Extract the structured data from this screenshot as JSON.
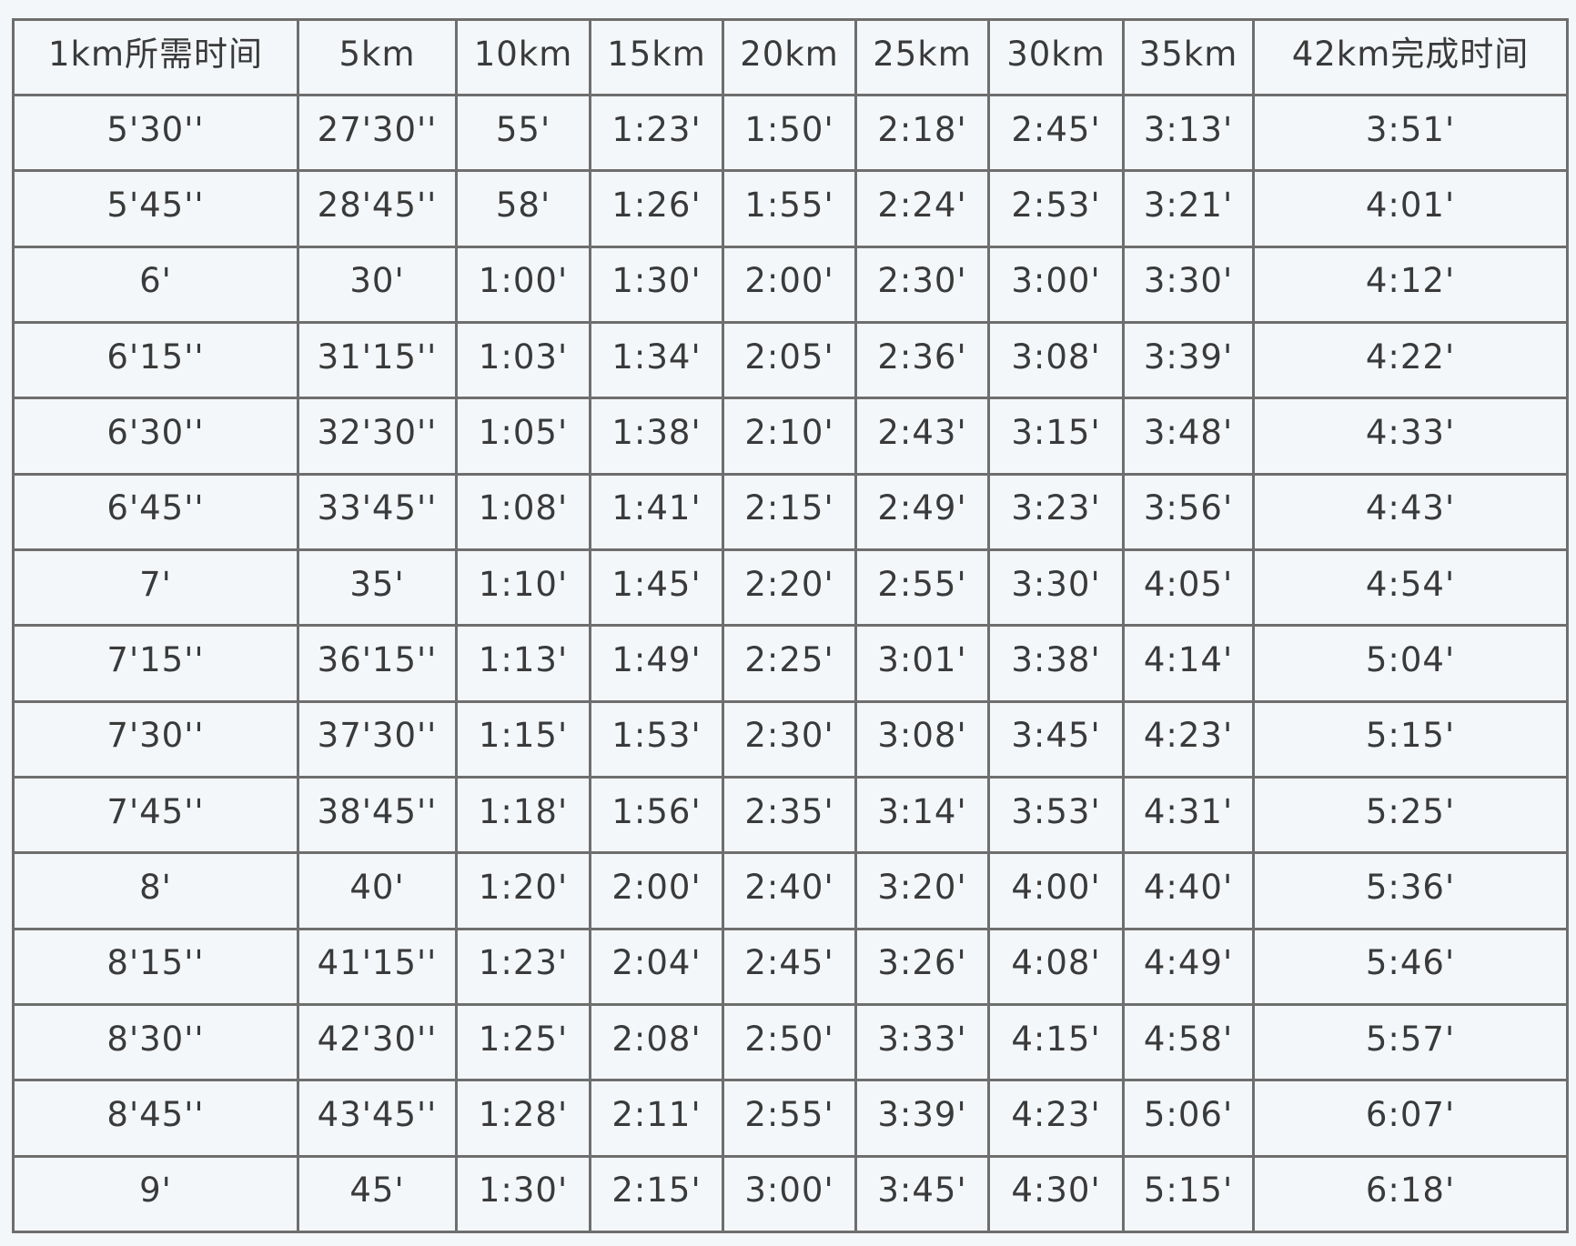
{
  "table": {
    "headers": [
      "1km所需时间",
      "5km",
      "10km",
      "15km",
      "20km",
      "25km",
      "30km",
      "35km",
      "42km完成时间"
    ],
    "rows": [
      [
        "5'30''",
        "27'30''",
        "55'",
        "1:23'",
        "1:50'",
        "2:18'",
        "2:45'",
        "3:13'",
        "3:51'"
      ],
      [
        "5'45''",
        "28'45''",
        "58'",
        "1:26'",
        "1:55'",
        "2:24'",
        "2:53'",
        "3:21'",
        "4:01'"
      ],
      [
        "6'",
        "30'",
        "1:00'",
        "1:30'",
        "2:00'",
        "2:30'",
        "3:00'",
        "3:30'",
        "4:12'"
      ],
      [
        "6'15''",
        "31'15''",
        "1:03'",
        "1:34'",
        "2:05'",
        "2:36'",
        "3:08'",
        "3:39'",
        "4:22'"
      ],
      [
        "6'30''",
        "32'30''",
        "1:05'",
        "1:38'",
        "2:10'",
        "2:43'",
        "3:15'",
        "3:48'",
        "4:33'"
      ],
      [
        "6'45''",
        "33'45''",
        "1:08'",
        "1:41'",
        "2:15'",
        "2:49'",
        "3:23'",
        "3:56'",
        "4:43'"
      ],
      [
        "7'",
        "35'",
        "1:10'",
        "1:45'",
        "2:20'",
        "2:55'",
        "3:30'",
        "4:05'",
        "4:54'"
      ],
      [
        "7'15''",
        "36'15''",
        "1:13'",
        "1:49'",
        "2:25'",
        "3:01'",
        "3:38'",
        "4:14'",
        "5:04'"
      ],
      [
        "7'30''",
        "37'30''",
        "1:15'",
        "1:53'",
        "2:30'",
        "3:08'",
        "3:45'",
        "4:23'",
        "5:15'"
      ],
      [
        "7'45''",
        "38'45''",
        "1:18'",
        "1:56'",
        "2:35'",
        "3:14'",
        "3:53'",
        "4:31'",
        "5:25'"
      ],
      [
        "8'",
        "40'",
        "1:20'",
        "2:00'",
        "2:40'",
        "3:20'",
        "4:00'",
        "4:40'",
        "5:36'"
      ],
      [
        "8'15''",
        "41'15''",
        "1:23'",
        "2:04'",
        "2:45'",
        "3:26'",
        "4:08'",
        "4:49'",
        "5:46'"
      ],
      [
        "8'30''",
        "42'30''",
        "1:25'",
        "2:08'",
        "2:50'",
        "3:33'",
        "4:15'",
        "4:58'",
        "5:57'"
      ],
      [
        "8'45''",
        "43'45''",
        "1:28'",
        "2:11'",
        "2:55'",
        "3:39'",
        "4:23'",
        "5:06'",
        "6:07'"
      ],
      [
        "9'",
        "45'",
        "1:30'",
        "2:15'",
        "3:00'",
        "3:45'",
        "4:30'",
        "5:15'",
        "6:18'"
      ]
    ]
  },
  "colors": {
    "background": "#f4f7fa",
    "border": "#6e6e6e",
    "text": "#3a3a3a"
  }
}
